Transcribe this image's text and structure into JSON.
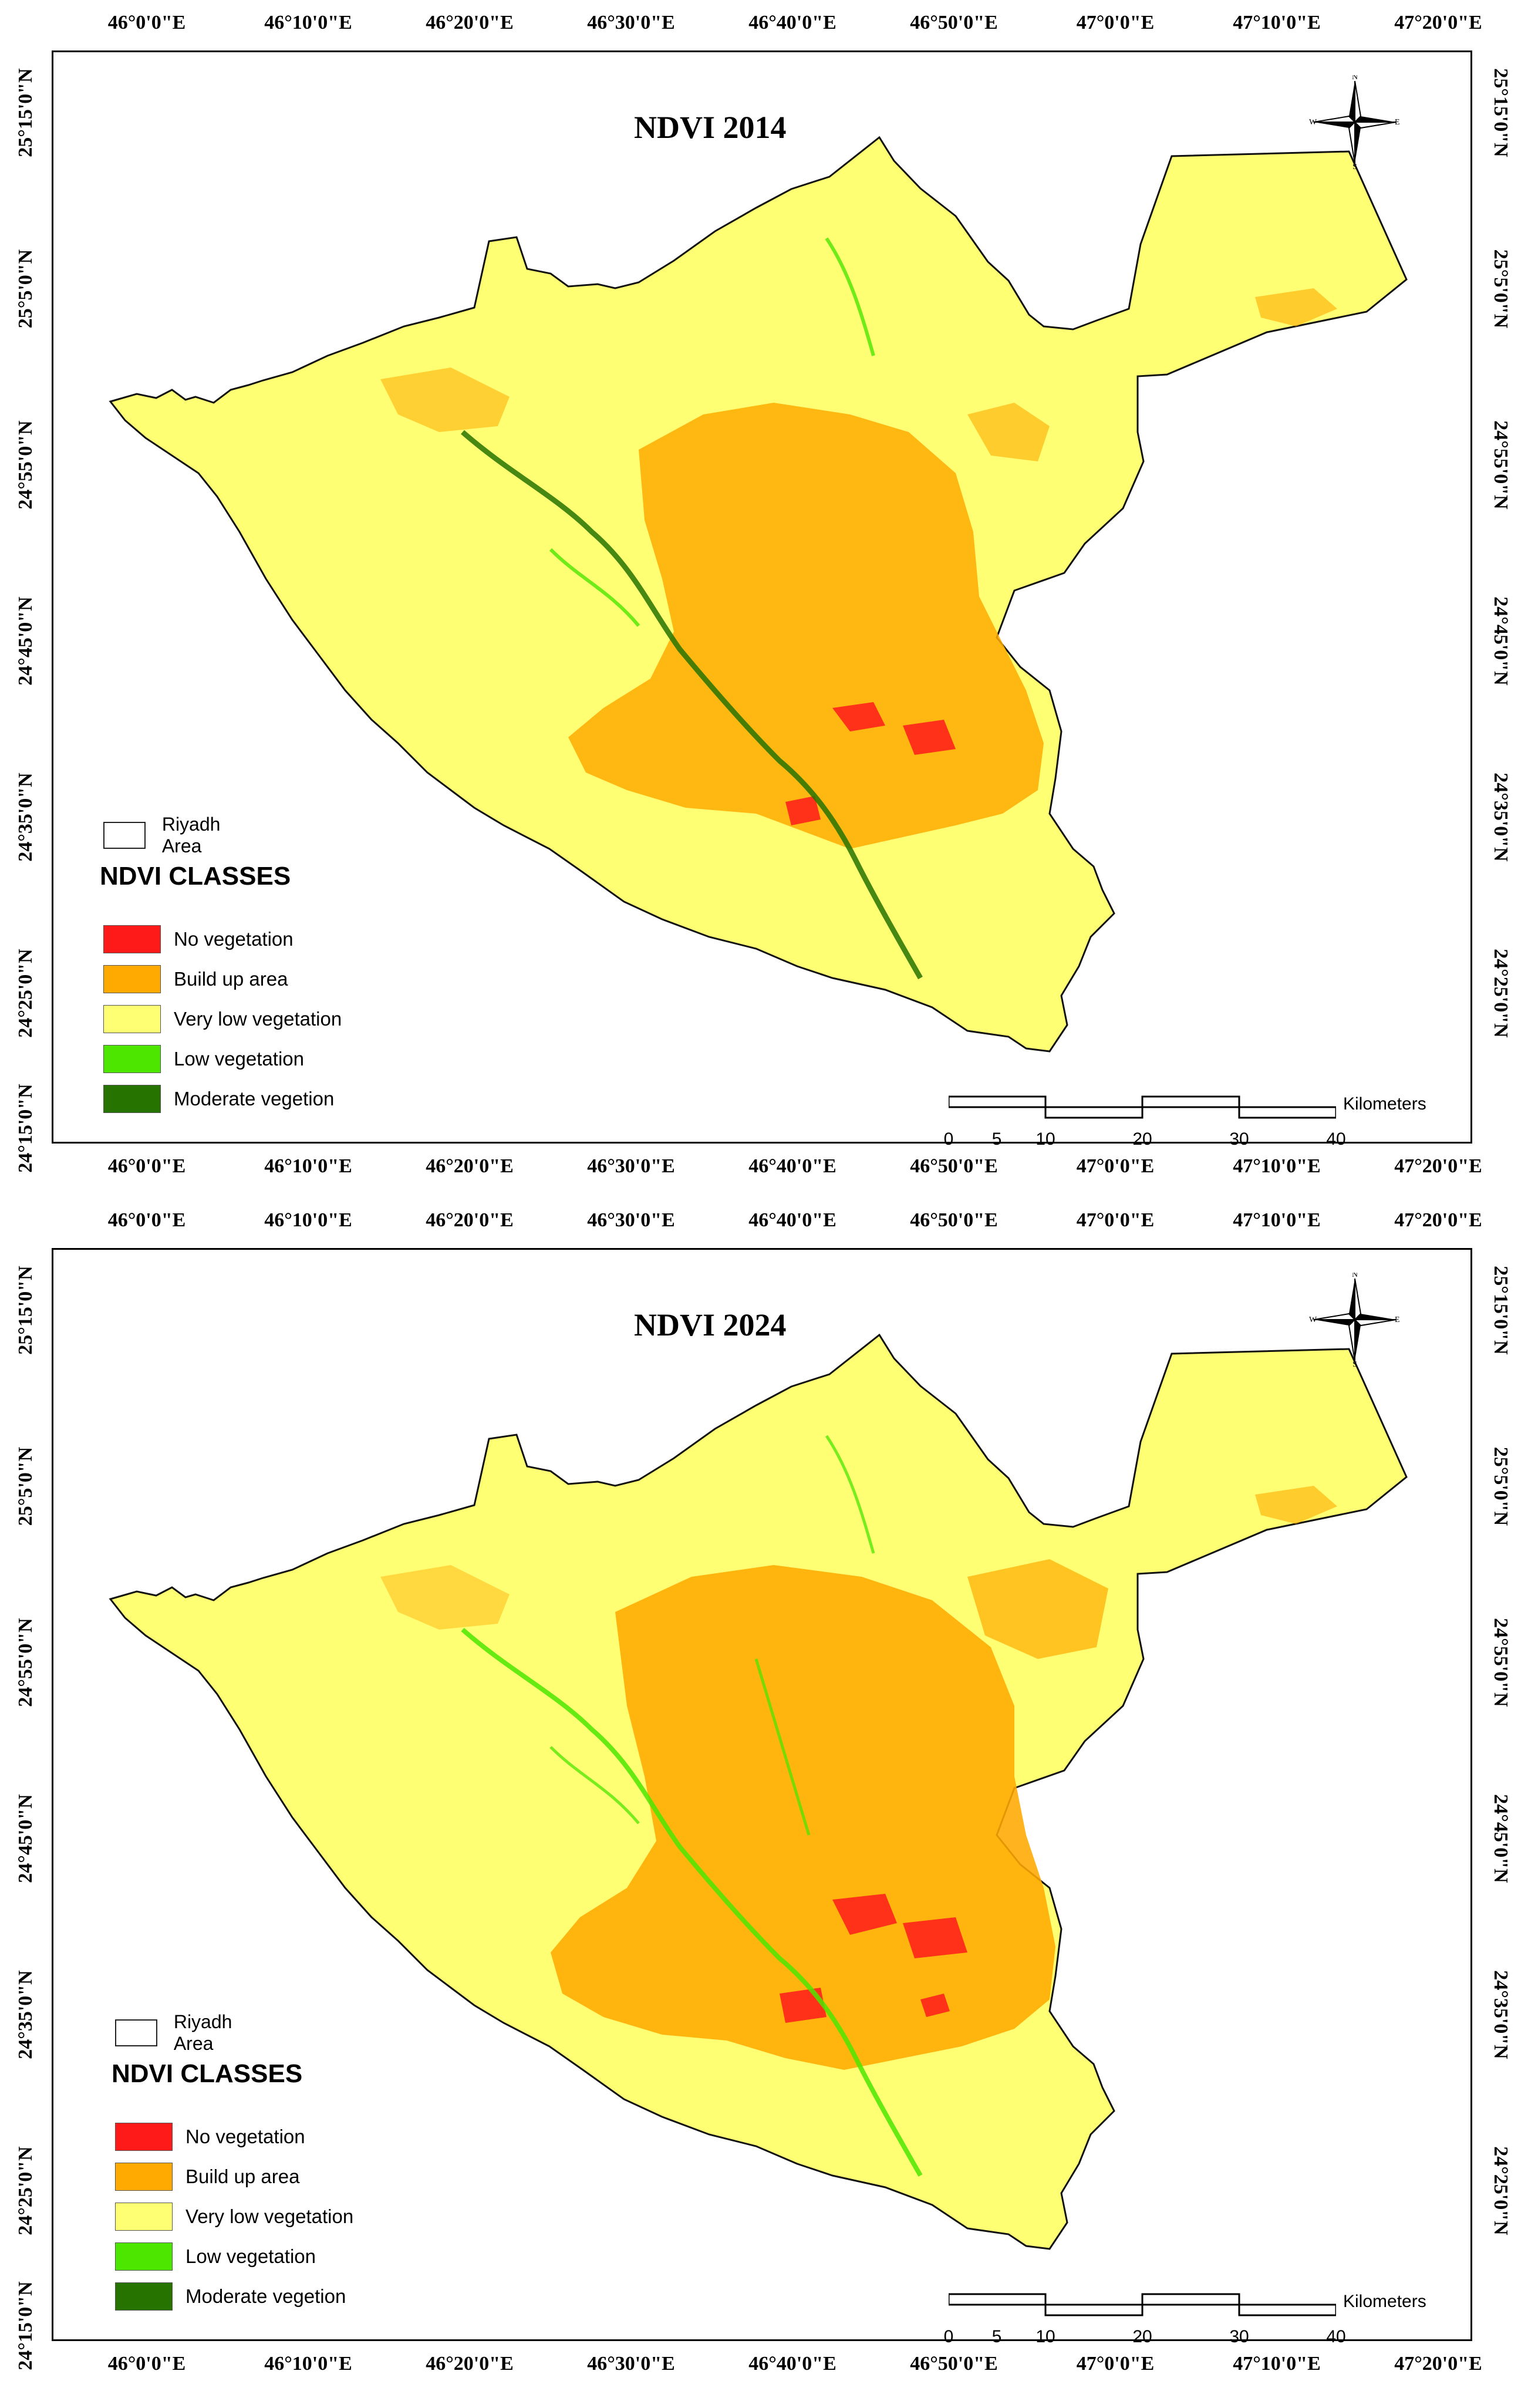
{
  "panels": [
    {
      "title": "NDVI 2014",
      "lon_labels": [
        "46°0'0\"E",
        "46°10'0\"E",
        "46°20'0\"E",
        "46°30'0\"E",
        "46°40'0\"E",
        "46°50'0\"E",
        "47°0'0\"E",
        "47°10'0\"E",
        "47°20'0\"E"
      ],
      "lat_labels": [
        "25°15'0\"N",
        "25°5'0\"N",
        "24°55'0\"N",
        "24°45'0\"N",
        "24°35'0\"N",
        "24°25'0\"N",
        "24°15'0\"N"
      ],
      "compass": {
        "n": "N",
        "s": "S",
        "e": "E",
        "w": "W"
      },
      "legend": {
        "area_label": "Riyadh Area",
        "classes_title": "NDVI CLASSES",
        "classes": [
          {
            "label": "No vegetation",
            "color": "#ff1a1a"
          },
          {
            "label": "Build up area",
            "color": "#ffaa00"
          },
          {
            "label": "Very low vegetation",
            "color": "#ffff73"
          },
          {
            "label": "Low vegetation",
            "color": "#4ce600"
          },
          {
            "label": "Moderate vegetion",
            "color": "#267300"
          }
        ]
      },
      "scalebar": {
        "ticks": [
          "0",
          "5",
          "10",
          "20",
          "30",
          "40"
        ],
        "unit": "Kilometers"
      }
    },
    {
      "title": "NDVI 2024",
      "lon_labels": [
        "46°0'0\"E",
        "46°10'0\"E",
        "46°20'0\"E",
        "46°30'0\"E",
        "46°40'0\"E",
        "46°50'0\"E",
        "47°0'0\"E",
        "47°10'0\"E",
        "47°20'0\"E"
      ],
      "lat_labels": [
        "25°15'0\"N",
        "25°5'0\"N",
        "24°55'0\"N",
        "24°45'0\"N",
        "24°35'0\"N",
        "24°25'0\"N",
        "24°15'0\"N"
      ],
      "compass": {
        "n": "N",
        "s": "S",
        "e": "E",
        "w": "W"
      },
      "legend": {
        "area_label": "Riyadh Area",
        "classes_title": "NDVI CLASSES",
        "classes": [
          {
            "label": "No vegetation",
            "color": "#ff1a1a"
          },
          {
            "label": "Build up area",
            "color": "#ffaa00"
          },
          {
            "label": "Very low vegetation",
            "color": "#ffff73"
          },
          {
            "label": "Low vegetation",
            "color": "#4ce600"
          },
          {
            "label": "Moderate vegetion",
            "color": "#267300"
          }
        ]
      },
      "scalebar": {
        "ticks": [
          "0",
          "5",
          "10",
          "20",
          "30",
          "40"
        ],
        "unit": "Kilometers"
      }
    }
  ]
}
